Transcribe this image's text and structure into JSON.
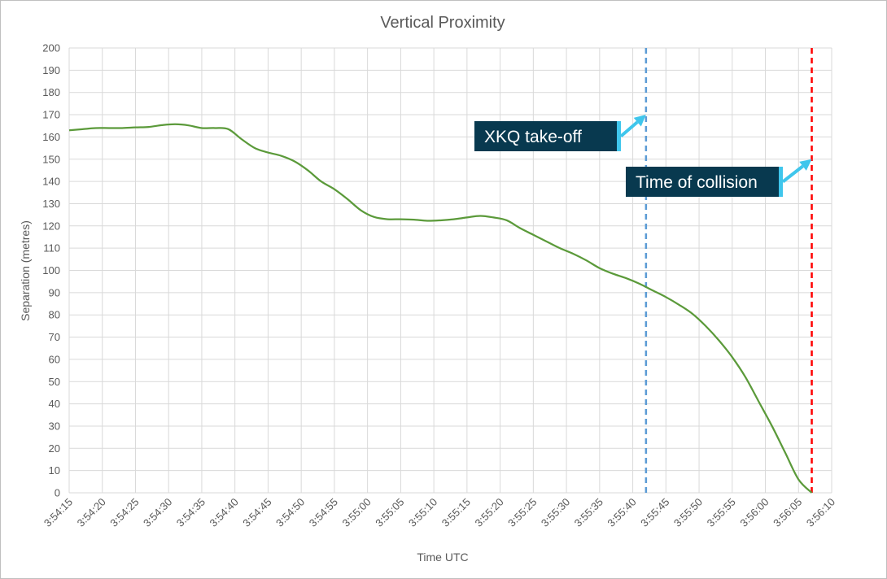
{
  "chart_data": {
    "type": "line",
    "title": "Vertical Proximity",
    "xlabel": "Time UTC",
    "ylabel": "Separation (metres)",
    "xlim": [
      "3:54:15",
      "3:56:10"
    ],
    "ylim": [
      0,
      200
    ],
    "y_ticks": [
      0,
      10,
      20,
      30,
      40,
      50,
      60,
      70,
      80,
      90,
      100,
      110,
      120,
      130,
      140,
      150,
      160,
      170,
      180,
      190,
      200
    ],
    "x_ticks": [
      "3:54:15",
      "3:54:20",
      "3:54:25",
      "3:54:30",
      "3:54:35",
      "3:54:40",
      "3:54:45",
      "3:54:50",
      "3:54:55",
      "3:55:00",
      "3:55:05",
      "3:55:10",
      "3:55:15",
      "3:55:20",
      "3:55:25",
      "3:55:30",
      "3:55:35",
      "3:55:40",
      "3:55:45",
      "3:55:50",
      "3:55:55",
      "3:56:00",
      "3:56:05",
      "3:56:10"
    ],
    "grid": true,
    "series": [
      {
        "color": "#5b9a3a",
        "x": [
          "3:54:15",
          "3:54:17",
          "3:54:19",
          "3:54:21",
          "3:54:23",
          "3:54:25",
          "3:54:27",
          "3:54:29",
          "3:54:31",
          "3:54:33",
          "3:54:35",
          "3:54:37",
          "3:54:39",
          "3:54:41",
          "3:54:43",
          "3:54:45",
          "3:54:47",
          "3:54:49",
          "3:54:51",
          "3:54:53",
          "3:54:55",
          "3:54:57",
          "3:54:59",
          "3:55:01",
          "3:55:03",
          "3:55:05",
          "3:55:07",
          "3:55:09",
          "3:55:11",
          "3:55:13",
          "3:55:15",
          "3:55:17",
          "3:55:19",
          "3:55:21",
          "3:55:23",
          "3:55:25",
          "3:55:27",
          "3:55:29",
          "3:55:31",
          "3:55:33",
          "3:55:35",
          "3:55:37",
          "3:55:39",
          "3:55:41",
          "3:55:43",
          "3:55:45",
          "3:55:47",
          "3:55:49",
          "3:55:51",
          "3:55:53",
          "3:55:55",
          "3:55:57",
          "3:55:59",
          "3:56:01",
          "3:56:03",
          "3:56:05",
          "3:56:07"
        ],
        "values": [
          163,
          163.5,
          164,
          164,
          164,
          164.3,
          164.5,
          165.3,
          165.7,
          165.2,
          164,
          164,
          163.5,
          159,
          155,
          153,
          151.5,
          149,
          145,
          140,
          136.5,
          132,
          127,
          124,
          123,
          123,
          122.8,
          122.3,
          122.5,
          123,
          123.8,
          124.5,
          123.8,
          122.5,
          119,
          116,
          113,
          110,
          107.5,
          104.5,
          101,
          98.5,
          96.5,
          94,
          91,
          88,
          84.5,
          80.5,
          75,
          68.5,
          61,
          52,
          41,
          30,
          18,
          6,
          0
        ]
      }
    ],
    "reference_lines": [
      {
        "x": "3:55:42",
        "color": "#5b9bd5",
        "style": "dashed"
      },
      {
        "x": "3:56:07",
        "color": "#ff0000",
        "style": "dashed"
      }
    ],
    "annotations": [
      {
        "text": "XKQ take-off",
        "target_x": "3:55:42",
        "target_y": 170
      },
      {
        "text": "Time of collision",
        "target_x": "3:56:07",
        "target_y": 150
      }
    ],
    "annotation_box_color": "#08394f",
    "annotation_arrow_color": "#3fc6ec"
  }
}
